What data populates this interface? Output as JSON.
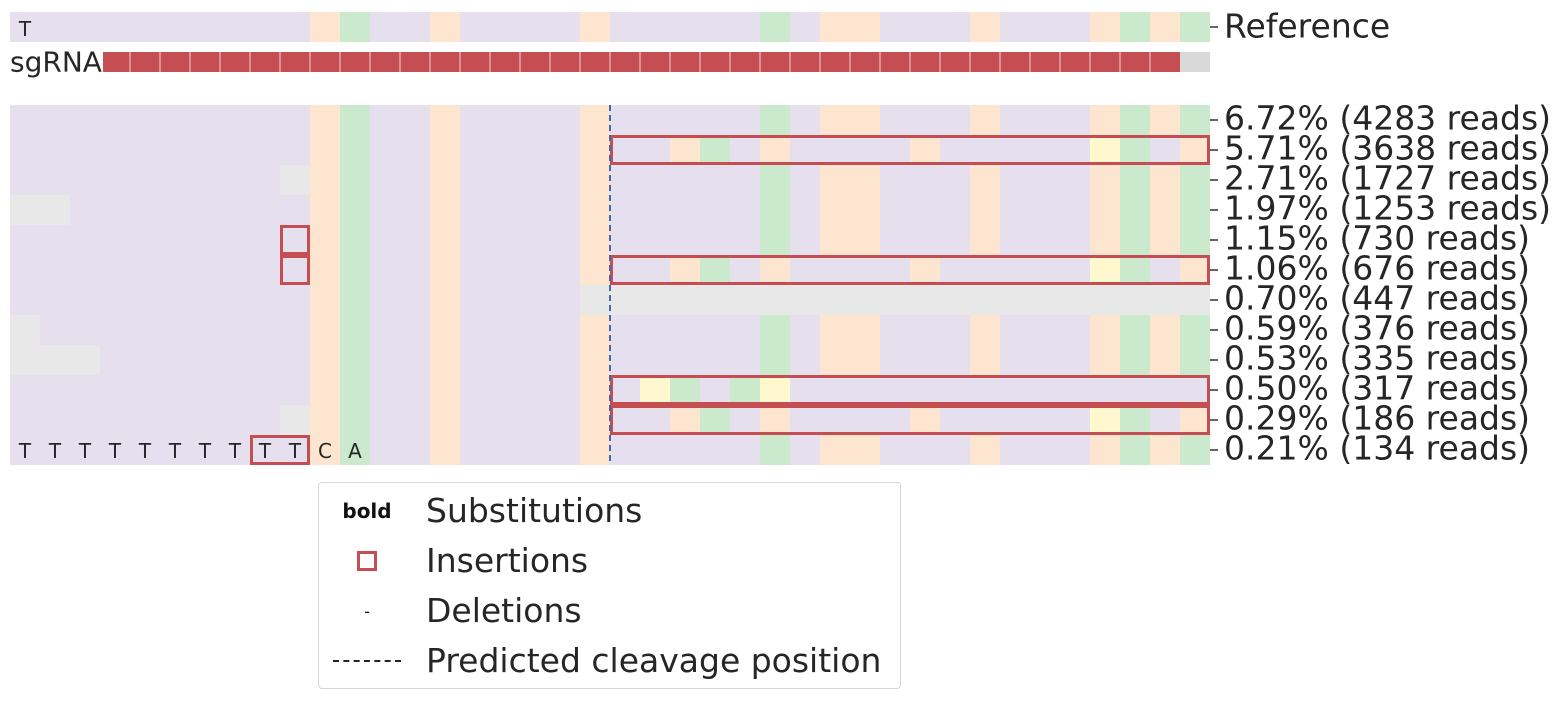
{
  "chart_data": {
    "type": "heatmap",
    "title": "",
    "num_columns": 40,
    "base_colors": {
      "T": "#e5dfee",
      "A": "#cbe9cd",
      "C": "#fde5cf",
      "G": "#fff8cf",
      "-": "#e8e8e8"
    },
    "insertion_color": "#c44e52",
    "cleavage_line_color": "#4466aa",
    "reference": {
      "label": "Reference",
      "sequence": "TTTTTTTTTTCATTCTTTTCTTTTTATCCTTTCTTTCACATTCATCAT",
      "visible_text": "T",
      "highlights": []
    },
    "sgrna": {
      "label": "sgRNA",
      "color": "#c44e52",
      "gray_color": "#d9d9d9",
      "segments": [
        {
          "start": 3.1,
          "end": 39.0,
          "kind": "guide"
        },
        {
          "start": 39.0,
          "end": 40.0,
          "kind": "pam"
        }
      ]
    },
    "cleavage_position": 20,
    "rows": [
      {
        "label": "6.72% (4283 reads)",
        "seq": "TTTTTTTTTTCATTCTTTTCTTTTTATCCTTTCTTTCACATTCATCAT",
        "percent": 6.72,
        "reads": 4283,
        "deletions": [],
        "substitutions": [],
        "insertion_boxes": []
      },
      {
        "label": "5.71% (3638 reads)",
        "seq": "TTTTTTTTTTCATTCTTTTCTTCATCTTTTCTTTTTGATCAGTA",
        "percent": 5.71,
        "reads": 3638,
        "deletions": [],
        "substitutions": [
          33,
          37
        ],
        "insertion_boxes": [
          [
            20,
            40
          ]
        ]
      },
      {
        "label": "2.71% (1727 reads)",
        "seq": "TTTTTTTTTTCATTCTTTTCTTTTTATCCTTTCTTTCACATTCATCAT",
        "percent": 2.71,
        "reads": 1727,
        "deletions": [
          [
            9,
            10
          ]
        ],
        "substitutions": [],
        "insertion_boxes": []
      },
      {
        "label": "1.97% (1253 reads)",
        "seq": "TTTTTTTTTTCATTCTTTTCTTTTTATCCTTTCTTTCACATTCATCAT",
        "percent": 1.97,
        "reads": 1253,
        "deletions": [
          [
            0,
            2
          ]
        ],
        "substitutions": [],
        "insertion_boxes": []
      },
      {
        "label": "1.15% (730 reads)",
        "seq": "TTTTTTTTTTCATTCTTTTCTTTTTATCCTTTCTTTCACATTCATCAT",
        "percent": 1.15,
        "reads": 730,
        "deletions": [],
        "substitutions": [],
        "insertion_boxes": [
          [
            9,
            10
          ]
        ]
      },
      {
        "label": "1.06% (676 reads)",
        "seq": "TTTTTTTTTTCATTCTTTTCTTCATCTTTTCTTTTTGATCAGTA",
        "percent": 1.06,
        "reads": 676,
        "deletions": [],
        "substitutions": [
          33,
          37
        ],
        "insertion_boxes": [
          [
            9,
            10
          ],
          [
            20,
            40
          ]
        ]
      },
      {
        "label": "0.70% (447 reads)",
        "seq": "TTTTTTTTTTCATTCTTTTC",
        "percent": 0.7,
        "reads": 447,
        "deletions": [
          [
            19,
            40
          ]
        ],
        "substitutions": [],
        "insertion_boxes": []
      },
      {
        "label": "0.59% (376 reads)",
        "seq": "TTTTTTTTTTCATTCTTTTCTTTTTATCCTTTCTTTCACATTCATCAT",
        "percent": 0.59,
        "reads": 376,
        "deletions": [
          [
            0,
            1
          ]
        ],
        "substitutions": [],
        "insertion_boxes": []
      },
      {
        "label": "0.53% (335 reads)",
        "seq": "TTTTTTTTTTCATTCTTTTCTTTTTATCCTTTCTTTCACATTCATCAT",
        "percent": 0.53,
        "reads": 335,
        "deletions": [
          [
            0,
            3
          ]
        ],
        "substitutions": [],
        "insertion_boxes": []
      },
      {
        "label": "0.50% (317 reads)",
        "seq": "TTTTTTTTTTCATTCTTTTCTGATAGTTTTTTTTTTTTTTCATTCATCA",
        "percent": 0.5,
        "reads": 317,
        "deletions": [],
        "substitutions": [
          21,
          25
        ],
        "insertion_boxes": [
          [
            20,
            40
          ]
        ]
      },
      {
        "label": "0.29% (186 reads)",
        "seq": "TTTTTTTTTTCATTCTTTTCTTCATCTTTTCTTTTTGATCAGTA",
        "percent": 0.29,
        "reads": 186,
        "deletions": [
          [
            9,
            10
          ]
        ],
        "substitutions": [
          33,
          37
        ],
        "insertion_boxes": [
          [
            20,
            40
          ]
        ]
      },
      {
        "label": "0.21% (134 reads)",
        "seq": "TTTTTTTTTTCATTCTTTTCTTTTTATCCTTTCTTTCACATTCATCAT",
        "percent": 0.21,
        "reads": 134,
        "deletions": [],
        "substitutions": [],
        "insertion_boxes": [
          [
            8,
            10
          ]
        ],
        "visible_text": "TTTTTTTTTTCA"
      }
    ]
  },
  "legend": {
    "items": [
      {
        "key_text": "bold",
        "label": "Substitutions",
        "marker": "bold-text"
      },
      {
        "key_text": "",
        "label": "Insertions",
        "marker": "red-square"
      },
      {
        "key_text": "-",
        "label": "Deletions",
        "marker": "dash"
      },
      {
        "key_text": "",
        "label": "Predicted cleavage position",
        "marker": "dashed-line"
      }
    ]
  }
}
